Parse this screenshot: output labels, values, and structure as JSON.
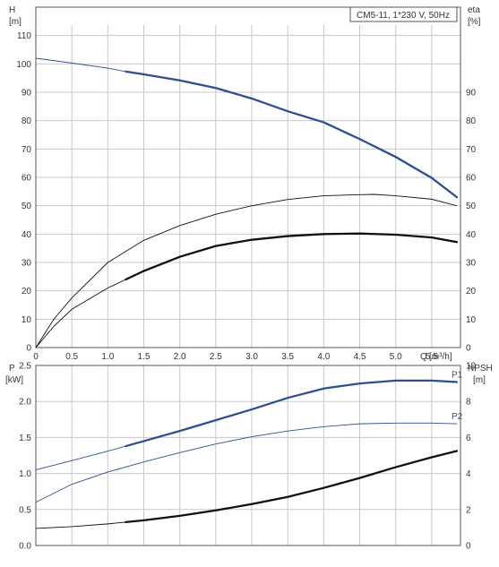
{
  "chart_data": [
    {
      "type": "line",
      "title": "CM5-11, 1*230 V, 50Hz",
      "y_left_label": "H",
      "y_left_unit": "[m]",
      "y_right_label": "eta",
      "y_right_unit": "[%]",
      "x_label": "Q",
      "x_unit": "[m³/h]",
      "xlim": [
        0,
        5.9
      ],
      "ylim_left": [
        0,
        120
      ],
      "ylim_right": [
        0,
        120
      ],
      "x_ticks": [
        "0",
        "0.5",
        "1.0",
        "1.5",
        "2.0",
        "2.5",
        "3.0",
        "3.5",
        "4.0",
        "4.5",
        "5.0",
        "5.5"
      ],
      "x_tick_values": [
        0,
        0.5,
        1.0,
        1.5,
        2.0,
        2.5,
        3.0,
        3.5,
        4.0,
        4.5,
        5.0,
        5.5
      ],
      "y_left_ticks": [
        "0",
        "10",
        "20",
        "30",
        "40",
        "50",
        "60",
        "70",
        "80",
        "90",
        "100",
        "110"
      ],
      "y_left_tick_values": [
        0,
        10,
        20,
        30,
        40,
        50,
        60,
        70,
        80,
        90,
        100,
        110
      ],
      "y_right_ticks": [
        "0",
        "10",
        "20",
        "30",
        "40",
        "50",
        "60",
        "70",
        "80",
        "90"
      ],
      "y_right_tick_values": [
        0,
        10,
        20,
        30,
        40,
        50,
        60,
        70,
        80,
        90
      ],
      "grid": true,
      "series": [
        {
          "axis": "left",
          "color": "#2f4f8f",
          "thin_until": 1.25,
          "x": [
            0,
            0.5,
            1.0,
            1.25,
            1.5,
            2.0,
            2.5,
            3.0,
            3.5,
            4.0,
            4.5,
            5.0,
            5.5,
            5.85
          ],
          "y": [
            102,
            100.3,
            98.5,
            97.3,
            96.3,
            94.2,
            91.5,
            87.8,
            83.3,
            79.4,
            73.5,
            67.2,
            59.8,
            53
          ]
        },
        {
          "axis": "right",
          "color": "#111111",
          "thin_until": 5.9,
          "x": [
            0,
            0.25,
            0.5,
            1.0,
            1.5,
            2.0,
            2.5,
            3.0,
            3.5,
            4.0,
            4.5,
            4.7,
            5.0,
            5.5,
            5.85
          ],
          "y": [
            0,
            10,
            17.5,
            30,
            37.8,
            43,
            47,
            50,
            52.2,
            53.5,
            53.9,
            54,
            53.5,
            52.3,
            50
          ]
        },
        {
          "axis": "right",
          "color": "#111111",
          "thin_until": 1.25,
          "x": [
            0,
            0.25,
            0.5,
            1.0,
            1.25,
            1.5,
            2.0,
            2.5,
            3.0,
            3.5,
            4.0,
            4.5,
            5.0,
            5.5,
            5.85
          ],
          "y": [
            0,
            7.5,
            13.5,
            21,
            24,
            27,
            32,
            35.8,
            38,
            39.3,
            40,
            40.2,
            39.8,
            38.8,
            37.2
          ]
        }
      ]
    },
    {
      "type": "line",
      "y_left_label": "P",
      "y_left_unit": "[kW]",
      "y_right_label": "NPSH",
      "y_right_unit": "[m]",
      "xlim": [
        0,
        5.9
      ],
      "ylim_left": [
        0,
        2.5
      ],
      "ylim_right": [
        0,
        10
      ],
      "x_ticks": [
        "0",
        "0.5",
        "1.0",
        "1.5",
        "2.0",
        "2.5",
        "3.0",
        "3.5",
        "4.0",
        "4.5",
        "5.0",
        "5.5"
      ],
      "x_tick_values": [
        0,
        0.5,
        1.0,
        1.5,
        2.0,
        2.5,
        3.0,
        3.5,
        4.0,
        4.5,
        5.0,
        5.5
      ],
      "y_left_ticks": [
        "0.0",
        "0.5",
        "1.0",
        "1.5",
        "2.0",
        "2.5"
      ],
      "y_left_tick_values": [
        0,
        0.5,
        1.0,
        1.5,
        2.0,
        2.5
      ],
      "y_right_ticks": [
        "0",
        "2",
        "4",
        "6",
        "8",
        "10"
      ],
      "y_right_tick_values": [
        0,
        2,
        4,
        6,
        8,
        10
      ],
      "grid": true,
      "series": [
        {
          "name": "P1",
          "axis": "left",
          "color": "#2f4f8f",
          "thin_until": 1.25,
          "x": [
            0,
            0.5,
            1.0,
            1.25,
            1.5,
            2.0,
            2.5,
            3.0,
            3.5,
            4.0,
            4.5,
            5.0,
            5.5,
            5.85
          ],
          "y": [
            1.05,
            1.18,
            1.31,
            1.38,
            1.45,
            1.59,
            1.74,
            1.89,
            2.05,
            2.18,
            2.25,
            2.29,
            2.29,
            2.27
          ]
        },
        {
          "name": "P2",
          "axis": "left",
          "color": "#2f4f8f",
          "thin_until": 5.9,
          "x": [
            0,
            0.5,
            1.0,
            1.5,
            2.0,
            2.5,
            3.0,
            3.5,
            4.0,
            4.5,
            5.0,
            5.5,
            5.85
          ],
          "y": [
            0.6,
            0.85,
            1.02,
            1.16,
            1.29,
            1.41,
            1.51,
            1.59,
            1.65,
            1.69,
            1.7,
            1.7,
            1.69
          ]
        },
        {
          "axis": "right",
          "color": "#111111",
          "thin_until": 1.25,
          "x": [
            0,
            0.5,
            1.0,
            1.25,
            1.5,
            2.0,
            2.5,
            3.0,
            3.5,
            4.0,
            4.5,
            5.0,
            5.5,
            5.85
          ],
          "y": [
            0.95,
            1.05,
            1.2,
            1.3,
            1.4,
            1.65,
            1.95,
            2.3,
            2.7,
            3.2,
            3.75,
            4.35,
            4.9,
            5.25
          ]
        }
      ]
    }
  ]
}
